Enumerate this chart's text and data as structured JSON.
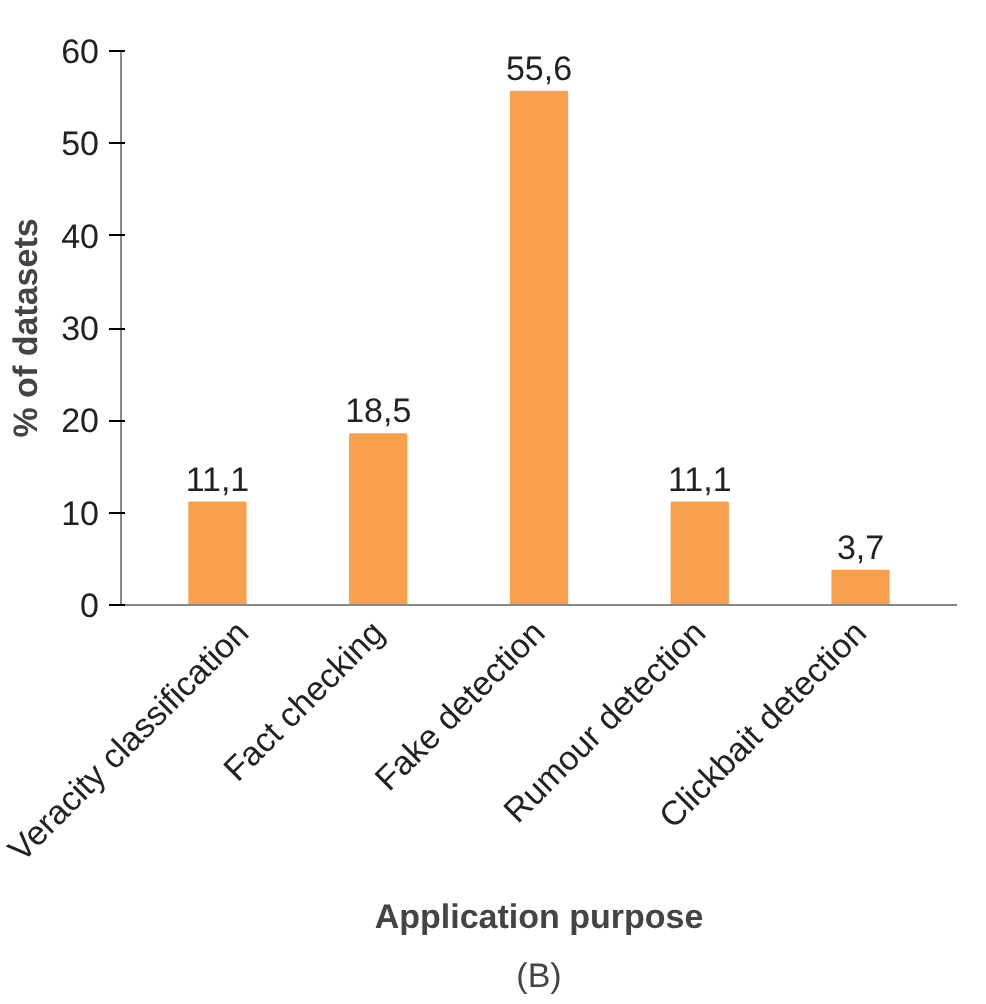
{
  "chart_data": {
    "type": "bar",
    "xlabel": "Application purpose",
    "ylabel": "% of datasets",
    "categories": [
      "Veracity classification",
      "Fact checking",
      "Fake detection",
      "Rumour detection",
      "Clickbait detection"
    ],
    "values": [
      11.1,
      18.5,
      55.6,
      11.1,
      3.7
    ],
    "value_labels": [
      "11,1",
      "18,5",
      "55,6",
      "11,1",
      "3,7"
    ],
    "color": "#f9a04f",
    "ylim": [
      0,
      60
    ],
    "yticks": [
      0,
      10,
      20,
      30,
      40,
      50,
      60
    ],
    "grid": false,
    "annotations": [
      "(B)"
    ]
  }
}
